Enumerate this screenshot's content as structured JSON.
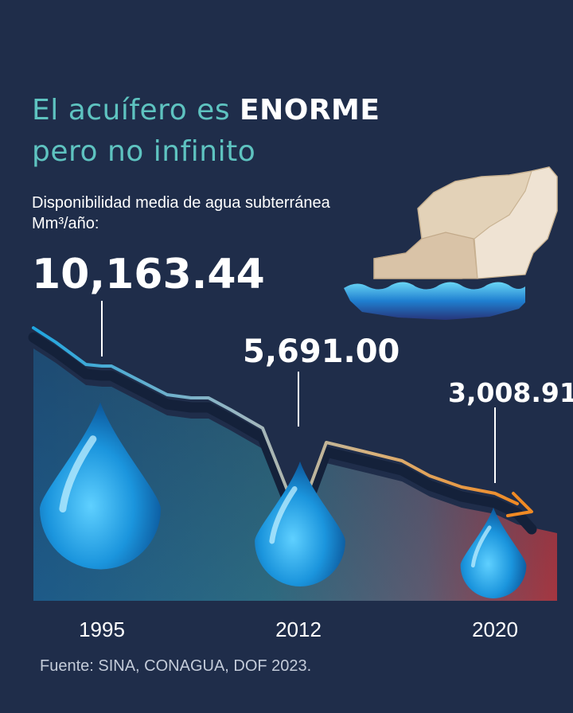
{
  "header": {
    "title_part1": "El acuífero es ",
    "title_emphasis": "ENORME",
    "title_line2": "pero no infinito"
  },
  "subtitle": {
    "line1": "Disponibilidad media de agua subterránea",
    "unit": "Mm³/año:"
  },
  "colors": {
    "background": "#1f2d4a",
    "accent_teal": "#5ec3c0",
    "line_start": "#1fa6e0",
    "line_end": "#f08a24",
    "drop_blue": "#1c8fd6",
    "map_land": "#e3d0b8"
  },
  "chart_data": {
    "type": "line",
    "title": "El acuífero es ENORME pero no infinito",
    "ylabel": "Disponibilidad media de agua subterránea Mm³/año",
    "x": [
      "1995",
      "2012",
      "2020"
    ],
    "series": [
      {
        "values": [
          10163.44,
          5691.0,
          3008.91
        ]
      }
    ],
    "data_labels": [
      "10,163.44",
      "5,691.00",
      "3,008.91"
    ],
    "ylim": [
      0,
      12000
    ],
    "grid": false,
    "legend": "none"
  },
  "footer": {
    "source": "Fuente: SINA, CONAGUA, DOF 2023."
  }
}
